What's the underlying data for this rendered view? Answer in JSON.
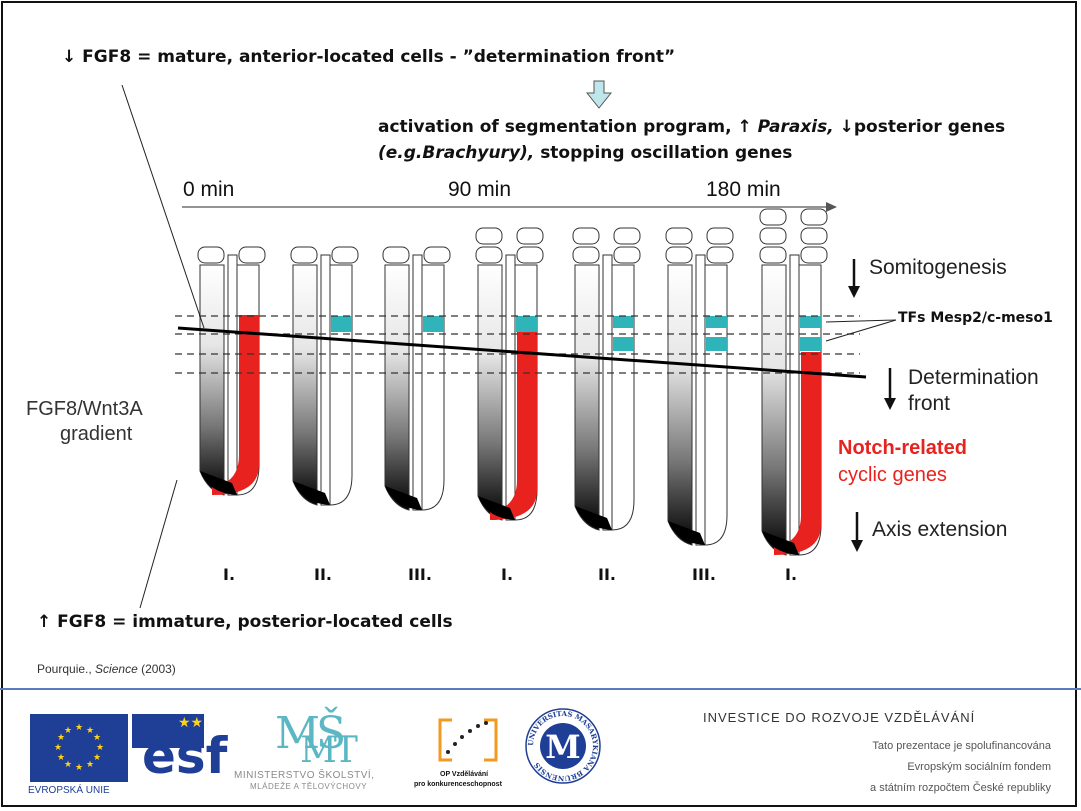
{
  "header": {
    "fgf8_down_text": "↓ FGF8 = mature, anterior-located cells - ”determination front”",
    "activation_line1_prefix": "activation of segmentation program, ↑ ",
    "activation_paraxis": "Paraxis,",
    "activation_line1_suffix": "↓posterior genes",
    "activation_line2_italic": "(e.g.Brachyury),",
    "activation_line2_suffix": "stopping oscillation genes"
  },
  "timeline": {
    "labels": [
      "0 min",
      "90 min",
      "180 min"
    ]
  },
  "diagram": {
    "gradient_label_line1": "FGF8/Wnt3A",
    "gradient_label_line2": "gradient",
    "tfs_label": "TFs Mesp2/c-meso1",
    "somitogenesis_label": "Somitogenesis",
    "determination_line1": "Determination",
    "determination_line2": "front",
    "notch_line1": "Notch-related",
    "notch_line2": "cyclic genes",
    "axis_extension_label": "Axis extension",
    "phases": [
      "I.",
      "II.",
      "III.",
      "I.",
      "II.",
      "III.",
      "I."
    ],
    "colors": {
      "cyclic": "#e8231f",
      "mesp": "#2fb5b9",
      "arrow_fill": "#bfe6ea"
    }
  },
  "bottom": {
    "fgf8_up_text": "↑  FGF8 = immature, posterior-located cells",
    "citation_author": "Pourquie.,",
    "citation_journal": "Science",
    "citation_year": "(2003)"
  },
  "footer": {
    "eu_label": "EVROPSKÁ UNIE",
    "esf_label": "esf",
    "msmt_line1": "MINISTERSTVO ŠKOLSTVÍ,",
    "msmt_line2": "MLÁDEŽE A TĚLOVÝCHOVY",
    "op_line1": "OP Vzdělávání",
    "op_line2": "pro konkurenceschopnost",
    "mu_ring": "UNIVERSITAS MASARYKIANA BRUNENSIS",
    "mu_letter": "M",
    "investice": "INVESTICE DO ROZVOJE VZDĚLÁVÁNÍ",
    "cofin_line1": "Tato prezentace je spolufinancována",
    "cofin_line2": "Evropským sociálním fondem",
    "cofin_line3": "a státním rozpočtem České republiky"
  }
}
